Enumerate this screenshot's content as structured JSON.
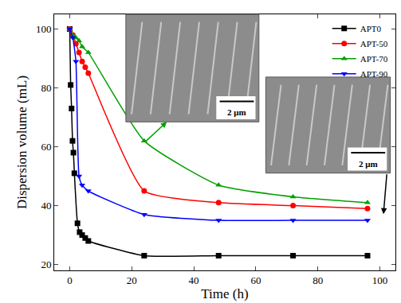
{
  "chart_data": {
    "type": "line",
    "x_label": "Time (h)",
    "y_label": "Dispersion volume (mL)",
    "xlim": [
      -5,
      105
    ],
    "ylim": [
      18,
      105
    ],
    "xticks": [
      0,
      20,
      40,
      60,
      80,
      100
    ],
    "yticks": [
      20,
      40,
      60,
      80,
      100
    ],
    "grid": false,
    "legend": "top right",
    "series": [
      {
        "name": "APT0",
        "color": "#000000",
        "marker": "square",
        "x": [
          0,
          0.3,
          0.6,
          0.9,
          1.2,
          1.5,
          2.5,
          3.2,
          4,
          5,
          6,
          24,
          48,
          72,
          96
        ],
        "values": [
          100,
          81,
          73,
          62,
          58,
          51,
          34,
          31,
          30,
          29,
          28,
          23,
          23,
          23,
          23
        ]
      },
      {
        "name": "APT-50",
        "color": "#ff0000",
        "marker": "circle",
        "x": [
          0,
          1,
          2,
          3,
          4,
          5,
          6,
          24,
          48,
          72,
          96
        ],
        "values": [
          100,
          98,
          95,
          92,
          89,
          87,
          85,
          45,
          41,
          40,
          39
        ]
      },
      {
        "name": "APT-70",
        "color": "#00a000",
        "marker": "triangle-up",
        "x": [
          0,
          1,
          2,
          3,
          4,
          6,
          24,
          48,
          72,
          96
        ],
        "values": [
          100,
          98,
          97,
          96,
          94,
          92,
          62,
          47,
          43,
          41
        ]
      },
      {
        "name": "APT-90",
        "color": "#0000ff",
        "marker": "triangle-down",
        "x": [
          0,
          1,
          2,
          3,
          4,
          6,
          24,
          48,
          72,
          96
        ],
        "values": [
          100,
          97,
          89,
          50,
          47,
          45,
          37,
          35,
          35,
          35
        ]
      }
    ],
    "annotations": [
      {
        "text": "2 μm"
      },
      {
        "text": "2 μm"
      }
    ]
  }
}
